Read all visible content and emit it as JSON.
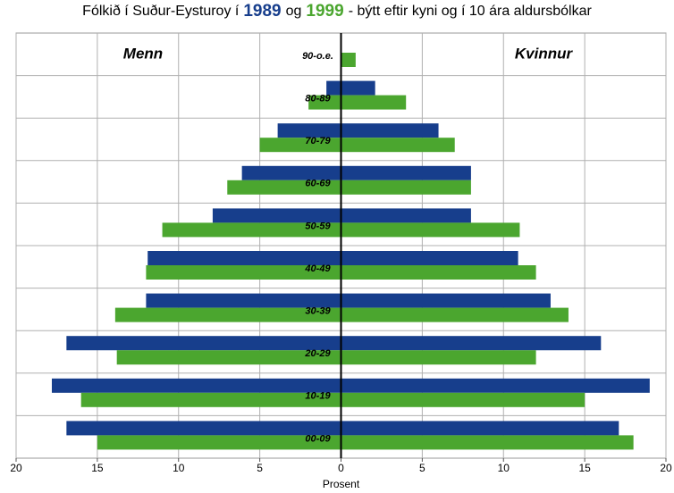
{
  "chart_data": {
    "type": "pyramid",
    "title_parts": [
      "Fólkið í Suður-Eysturoy í",
      "og",
      "- býtt eftir kyni og í 10 ára aldursbólkar"
    ],
    "sides": [
      "Menn",
      "Kvinnur"
    ],
    "categories": [
      "90-o.e.",
      "80-89",
      "70-79",
      "60-69",
      "50-59",
      "40-49",
      "30-39",
      "20-29",
      "10-19",
      "00-09"
    ],
    "series": [
      {
        "name": "1989",
        "color": "#173e8c",
        "men": [
          0,
          0.9,
          3.9,
          6.1,
          7.9,
          11.9,
          12,
          16.9,
          17.8,
          16.9
        ],
        "women": [
          0,
          2.1,
          6,
          8,
          8,
          10.9,
          12.9,
          16,
          19,
          17.1
        ]
      },
      {
        "name": "1999",
        "color": "#4ba62f",
        "men": [
          0,
          2,
          5,
          7,
          11,
          12,
          13.9,
          13.8,
          16,
          15
        ],
        "women": [
          0.9,
          4,
          7,
          8,
          11,
          12,
          14,
          12,
          15,
          18
        ]
      }
    ],
    "xlim": [
      0,
      20
    ],
    "xticks": [
      0,
      5,
      10,
      15,
      20
    ],
    "xlabel": "Prosent",
    "grid": true
  }
}
